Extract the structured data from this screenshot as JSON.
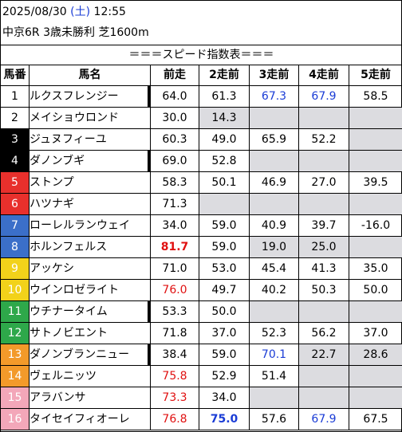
{
  "header": {
    "date": "2025/08/30",
    "dow": "(土)",
    "time": "12:55",
    "race": "中京6R 3歳未勝利 芝1600m"
  },
  "table_title": "＝＝＝スピード指数表＝＝＝",
  "columns": [
    "馬番",
    "馬名",
    "前走",
    "2走前",
    "3走前",
    "4走前",
    "5走前"
  ],
  "colors": {
    "waku1": "#ffffff",
    "waku2": "#000000",
    "waku3": "#e8302c",
    "waku4": "#3b6fc9",
    "waku5": "#f2d21a",
    "waku6": "#2ea84a",
    "waku7": "#f39a2a",
    "waku8": "#f3a7b9",
    "text_red": "#e01010",
    "text_blue": "#1a3cd6",
    "empty_cell": "#dcdce0"
  },
  "rows": [
    {
      "no": "1",
      "waku": "waku1",
      "name": "ルクスフレンジー",
      "mark": true,
      "vals": [
        {
          "v": "64.0"
        },
        {
          "v": "61.3"
        },
        {
          "v": "67.3",
          "c": "blue"
        },
        {
          "v": "67.9",
          "c": "blue"
        },
        {
          "v": "58.5"
        }
      ]
    },
    {
      "no": "2",
      "waku": "waku1",
      "name": "メイショウロンド",
      "mark": false,
      "vals": [
        {
          "v": "30.0"
        },
        {
          "v": "14.3",
          "empty": true
        },
        {
          "v": "",
          "empty": true
        },
        {
          "v": "",
          "empty": true
        },
        {
          "v": "",
          "empty": true
        }
      ]
    },
    {
      "no": "3",
      "waku": "waku2",
      "name": "ジュヌフィーユ",
      "mark": false,
      "vals": [
        {
          "v": "60.3"
        },
        {
          "v": "49.0"
        },
        {
          "v": "65.9"
        },
        {
          "v": "52.2"
        },
        {
          "v": "",
          "empty": true
        }
      ]
    },
    {
      "no": "4",
      "waku": "waku2",
      "name": "ダノンブギ",
      "mark": true,
      "vals": [
        {
          "v": "69.0"
        },
        {
          "v": "52.8"
        },
        {
          "v": "",
          "empty": true
        },
        {
          "v": "",
          "empty": true
        },
        {
          "v": "",
          "empty": true
        }
      ]
    },
    {
      "no": "5",
      "waku": "waku3",
      "name": "ストンプ",
      "mark": false,
      "vals": [
        {
          "v": "58.3"
        },
        {
          "v": "50.1"
        },
        {
          "v": "46.9"
        },
        {
          "v": "27.0"
        },
        {
          "v": "39.5"
        }
      ]
    },
    {
      "no": "6",
      "waku": "waku3",
      "name": "ハツナギ",
      "mark": false,
      "vals": [
        {
          "v": "71.3"
        },
        {
          "v": "",
          "empty": true
        },
        {
          "v": "",
          "empty": true
        },
        {
          "v": "",
          "empty": true
        },
        {
          "v": "",
          "empty": true
        }
      ]
    },
    {
      "no": "7",
      "waku": "waku4",
      "name": "ローレルランウェイ",
      "mark": false,
      "vals": [
        {
          "v": "34.0"
        },
        {
          "v": "59.0"
        },
        {
          "v": "40.9"
        },
        {
          "v": "39.7"
        },
        {
          "v": "-16.0"
        }
      ]
    },
    {
      "no": "8",
      "waku": "waku4",
      "name": "ホルンフェルス",
      "mark": false,
      "vals": [
        {
          "v": "81.7",
          "c": "red",
          "b": true
        },
        {
          "v": "59.0"
        },
        {
          "v": "19.0",
          "empty": true
        },
        {
          "v": "25.0",
          "empty": true
        },
        {
          "v": "",
          "empty": true
        }
      ]
    },
    {
      "no": "9",
      "waku": "waku5",
      "name": "アッケシ",
      "mark": false,
      "vals": [
        {
          "v": "71.0"
        },
        {
          "v": "53.0"
        },
        {
          "v": "45.4"
        },
        {
          "v": "41.3"
        },
        {
          "v": "35.0"
        }
      ]
    },
    {
      "no": "10",
      "waku": "waku5",
      "name": "ウインロゼライト",
      "mark": false,
      "vals": [
        {
          "v": "76.0",
          "c": "red"
        },
        {
          "v": "49.7"
        },
        {
          "v": "40.2"
        },
        {
          "v": "50.3"
        },
        {
          "v": "50.0"
        }
      ]
    },
    {
      "no": "11",
      "waku": "waku6",
      "name": "ウチナータイム",
      "mark": true,
      "vals": [
        {
          "v": "53.3"
        },
        {
          "v": "50.0"
        },
        {
          "v": "",
          "empty": true
        },
        {
          "v": "",
          "empty": true
        },
        {
          "v": "",
          "empty": true
        }
      ]
    },
    {
      "no": "12",
      "waku": "waku6",
      "name": "サトノビエント",
      "mark": false,
      "vals": [
        {
          "v": "71.8"
        },
        {
          "v": "37.0"
        },
        {
          "v": "52.3"
        },
        {
          "v": "56.2"
        },
        {
          "v": "37.0"
        }
      ]
    },
    {
      "no": "13",
      "waku": "waku7",
      "name": "ダノンブランニュー",
      "mark": true,
      "vals": [
        {
          "v": "38.4"
        },
        {
          "v": "59.0"
        },
        {
          "v": "70.1",
          "c": "blue"
        },
        {
          "v": "22.7",
          "empty": true
        },
        {
          "v": "28.6",
          "empty": true
        }
      ]
    },
    {
      "no": "14",
      "waku": "waku7",
      "name": "ヴェルニッツ",
      "mark": false,
      "vals": [
        {
          "v": "75.8",
          "c": "red"
        },
        {
          "v": "52.9"
        },
        {
          "v": "51.4"
        },
        {
          "v": "",
          "empty": true
        },
        {
          "v": "",
          "empty": true
        }
      ]
    },
    {
      "no": "15",
      "waku": "waku8",
      "name": "アラバンサ",
      "mark": false,
      "vals": [
        {
          "v": "73.3",
          "c": "red"
        },
        {
          "v": "34.0"
        },
        {
          "v": "",
          "empty": true
        },
        {
          "v": "",
          "empty": true
        },
        {
          "v": "",
          "empty": true
        }
      ]
    },
    {
      "no": "16",
      "waku": "waku8",
      "name": "タイセイフィオーレ",
      "mark": false,
      "vals": [
        {
          "v": "76.8",
          "c": "red"
        },
        {
          "v": "75.0",
          "c": "blue",
          "b": true
        },
        {
          "v": "57.6"
        },
        {
          "v": "67.9",
          "c": "blue"
        },
        {
          "v": "67.5"
        }
      ]
    }
  ]
}
